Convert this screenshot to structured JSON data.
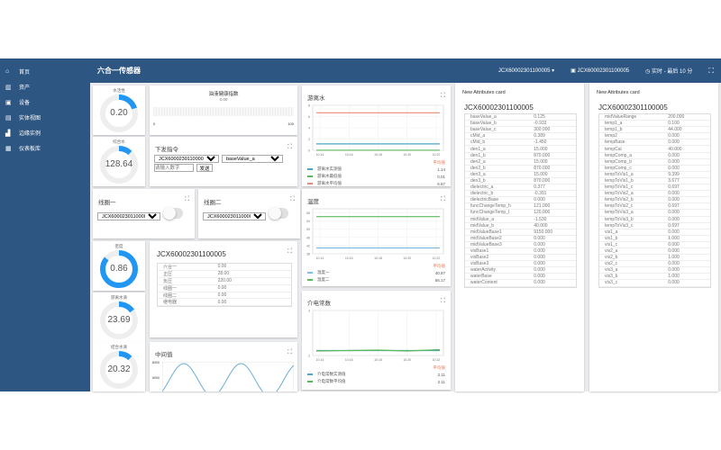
{
  "header": {
    "title": "六合一传感器",
    "device_select": "JCX60002301100005",
    "device_label": "JCX60002301100005",
    "time_range": "实时 - 最后 10 分"
  },
  "sidebar": {
    "items": [
      {
        "icon": "home-icon",
        "glyph": "⌂",
        "label": "首页"
      },
      {
        "icon": "assets-icon",
        "glyph": "▥",
        "label": "资产"
      },
      {
        "icon": "device-icon",
        "glyph": "▣",
        "label": "设备"
      },
      {
        "icon": "monitor-icon",
        "glyph": "▤",
        "label": "实体视图"
      },
      {
        "icon": "remote-icon",
        "glyph": "▟",
        "label": "边缘实例"
      },
      {
        "icon": "dashboard-icon",
        "glyph": "▦",
        "label": "仪表板库"
      }
    ]
  },
  "gauges": [
    {
      "label": "水活性",
      "value": "0.20",
      "fraction": 0.2
    },
    {
      "label": "综合水",
      "value": "128.64",
      "fraction": 0.12
    },
    {
      "label": "密度",
      "value": "0.86",
      "fraction": 0.86
    },
    {
      "label": "游离水滴",
      "value": "23.69",
      "fraction": 0.15
    },
    {
      "label": "结合水滴",
      "value": "20.32",
      "fraction": 0.12
    }
  ],
  "progress": {
    "title": "油液健康指数",
    "value": "0.00",
    "fraction": 0,
    "min": "0",
    "max": "100"
  },
  "command": {
    "title": "下发指令",
    "device": "JCX60002301100005",
    "attribute": "baseValue_a",
    "placeholder": "请输入数字",
    "send": "发送"
  },
  "switches": [
    {
      "title": "线圈一",
      "device": "JCX60002301100005",
      "on": false
    },
    {
      "title": "线圈二",
      "device": "JCX60002301100005",
      "on": false
    }
  ],
  "entity_table": {
    "title": "JCX60002301100005",
    "rows": [
      [
        "六合一",
        "0.00"
      ],
      [
        "正压",
        "28.00"
      ],
      [
        "负压",
        "220.00"
      ],
      [
        "线圈一",
        "0.00"
      ],
      [
        "线圈二",
        "0.00"
      ],
      [
        "继电器",
        "0.00"
      ]
    ]
  },
  "sine_card": {
    "title": "中间值",
    "yticks": [
      "8000",
      "6000"
    ]
  },
  "avg_label": "平均值",
  "chart_data": [
    {
      "type": "line",
      "title": "游离水",
      "x": [
        "10:14",
        "10:16",
        "10:18",
        "10:20",
        "10:22"
      ],
      "ylim": [
        0,
        8
      ],
      "yticks": [
        "0",
        "2",
        "4",
        "6",
        "8"
      ],
      "grid": true,
      "legend": "bottom",
      "series": [
        {
          "name": "游离水实测值",
          "color": "#4aa6c8",
          "values": [
            1.14,
            1.14,
            1.14,
            1.14,
            1.14
          ],
          "avg": "1.14"
        },
        {
          "name": "游离水最低值",
          "color": "#5cb85c",
          "values": [
            0.01,
            0.01,
            0.01,
            0.01,
            0.01
          ],
          "avg": "0.01"
        },
        {
          "name": "游离水平均值",
          "color": "#e88a7a",
          "values": [
            6.67,
            6.67,
            6.67,
            6.67,
            6.67
          ],
          "avg": "6.67"
        }
      ]
    },
    {
      "type": "line",
      "title": "温度",
      "x": [
        "10:14",
        "10:16",
        "10:18",
        "10:20",
        "10:22"
      ],
      "ylim": [
        38,
        60
      ],
      "yticks": [
        "38",
        "42",
        "46",
        "50",
        "54",
        "58"
      ],
      "grid": true,
      "legend": "bottom",
      "series": [
        {
          "name": "温度一",
          "color": "#7fbde0",
          "values": [
            40.87,
            40.87,
            40.87,
            40.87,
            40.87
          ],
          "avg": "40.87"
        },
        {
          "name": "温度二",
          "color": "#5cb85c",
          "values": [
            56.17,
            56.17,
            56.17,
            56.17,
            56.17
          ],
          "avg": "56.17"
        }
      ]
    },
    {
      "type": "line",
      "title": "介电常数",
      "x": [
        "10:14",
        "10:16",
        "10:18",
        "10:20",
        "10:22"
      ],
      "ylim": [
        2,
        3
      ],
      "yticks": [
        "2",
        "3"
      ],
      "grid": true,
      "legend": "bottom",
      "series": [
        {
          "name": "介电常数实测值",
          "color": "#4aa6c8",
          "values": [
            2.11,
            2.11,
            2.11,
            2.11,
            2.11
          ],
          "avg": "2.11"
        },
        {
          "name": "介电常数平均值",
          "color": "#5cb85c",
          "values": [
            2.1,
            2.11,
            2.12,
            2.1,
            2.13
          ],
          "avg": "2.11"
        }
      ]
    }
  ],
  "attr_cards": [
    {
      "title": "New Attributes card",
      "device": "JCX60002301100005",
      "rows": [
        [
          "baseValue_a",
          "0.125"
        ],
        [
          "baseValue_b",
          "-0.933"
        ],
        [
          "baseValue_c",
          "300.000"
        ],
        [
          "cMid_a",
          "0.389"
        ],
        [
          "cMid_b",
          "-1.450"
        ],
        [
          "den1_a",
          "15.000"
        ],
        [
          "den1_b",
          "870.000"
        ],
        [
          "den2_a",
          "15.000"
        ],
        [
          "den2_b",
          "870.000"
        ],
        [
          "den3_a",
          "15.000"
        ],
        [
          "den3_b",
          "870.000"
        ],
        [
          "dielectric_a",
          "0.377"
        ],
        [
          "dielectric_b",
          "-0.391"
        ],
        [
          "dielectricBase",
          "0.000"
        ],
        [
          "funcChangeTemp_h",
          "121.000"
        ],
        [
          "funcChangeTemp_l",
          "120.000"
        ],
        [
          "midValue_a",
          "-1.530"
        ],
        [
          "midValue_b",
          "40.000"
        ],
        [
          "midValueBase1",
          "9150.000"
        ],
        [
          "midValueBase2",
          "0.000"
        ],
        [
          "midValueBase3",
          "0.000"
        ],
        [
          "visBase1",
          "0.000"
        ],
        [
          "visBase2",
          "0.000"
        ],
        [
          "visBase3",
          "0.000"
        ],
        [
          "waterActivity",
          "0.000"
        ],
        [
          "waterBase",
          "0.000"
        ],
        [
          "waterContent",
          "0.000"
        ]
      ]
    },
    {
      "title": "New Attributes card",
      "device": "JCX60002301100005",
      "rows": [
        [
          "midValueRange",
          "200.000"
        ],
        [
          "temp1_a",
          "0.100"
        ],
        [
          "temp1_b",
          "44.000"
        ],
        [
          "temp2",
          "0.000"
        ],
        [
          "tempBase",
          "0.000"
        ],
        [
          "tempCal",
          "40.000"
        ],
        [
          "tempComp_a",
          "0.000"
        ],
        [
          "tempComp_b",
          "0.000"
        ],
        [
          "tempComp_c",
          "0.000"
        ],
        [
          "tempToVis1_a",
          "9.399"
        ],
        [
          "tempToVis1_b",
          "3.677"
        ],
        [
          "tempToVis1_c",
          "0.697"
        ],
        [
          "tempToVis2_a",
          "0.000"
        ],
        [
          "tempToVis2_b",
          "0.000"
        ],
        [
          "tempToVis2_c",
          "0.697"
        ],
        [
          "tempToVis3_a",
          "0.000"
        ],
        [
          "tempToVis3_b",
          "0.000"
        ],
        [
          "tempToVis3_c",
          "0.697"
        ],
        [
          "vis1_a",
          "0.000"
        ],
        [
          "vis1_b",
          "1.000"
        ],
        [
          "vis1_c",
          "0.000"
        ],
        [
          "vis2_a",
          "0.000"
        ],
        [
          "vis2_b",
          "1.000"
        ],
        [
          "vis2_c",
          "0.000"
        ],
        [
          "vis3_a",
          "0.000"
        ],
        [
          "vis3_b",
          "1.000"
        ],
        [
          "vis3_c",
          "0.000"
        ]
      ]
    }
  ],
  "colors": {
    "primary": "#2d5683",
    "gauge": "#2196f3",
    "avg": "#e8734a"
  }
}
